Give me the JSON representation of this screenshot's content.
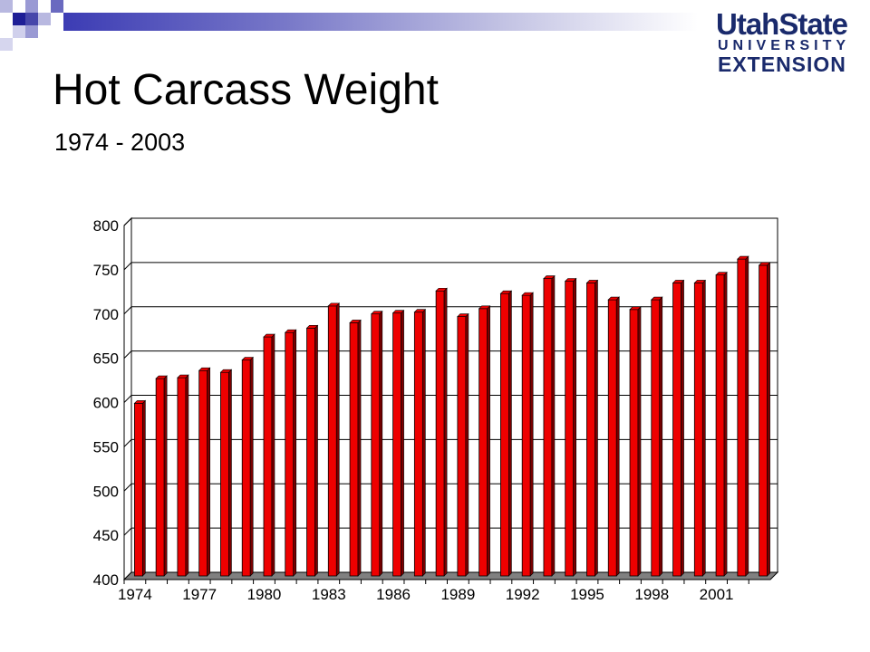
{
  "slide": {
    "title": "Hot Carcass Weight",
    "subtitle": "1974 - 2003"
  },
  "logo": {
    "line1": "UtahState",
    "line2": "UNIVERSITY",
    "line3": "EXTENSION"
  },
  "colors": {
    "bar": "#ee0000",
    "bar_dark": "#7a0000",
    "floor": "#808080",
    "logo": "#1a2a6c"
  },
  "chart_data": {
    "type": "bar",
    "title": "",
    "xlabel": "",
    "ylabel": "",
    "ylim": [
      400,
      800
    ],
    "yticks": [
      400,
      450,
      500,
      550,
      600,
      650,
      700,
      750,
      800
    ],
    "grid": true,
    "categories": [
      "1974",
      "1975",
      "1976",
      "1977",
      "1978",
      "1979",
      "1980",
      "1981",
      "1982",
      "1983",
      "1984",
      "1985",
      "1986",
      "1987",
      "1988",
      "1989",
      "1990",
      "1991",
      "1992",
      "1993",
      "1994",
      "1995",
      "1996",
      "1997",
      "1998",
      "1999",
      "2000",
      "2001",
      "2002",
      "2003"
    ],
    "xtick_labels": [
      "1974",
      "1977",
      "1980",
      "1983",
      "1986",
      "1989",
      "1992",
      "1995",
      "1998",
      "2001"
    ],
    "values": [
      595,
      623,
      624,
      632,
      630,
      644,
      670,
      675,
      680,
      705,
      686,
      696,
      697,
      698,
      722,
      693,
      702,
      719,
      717,
      736,
      733,
      731,
      712,
      701,
      712,
      731,
      731,
      740,
      758,
      751
    ]
  }
}
